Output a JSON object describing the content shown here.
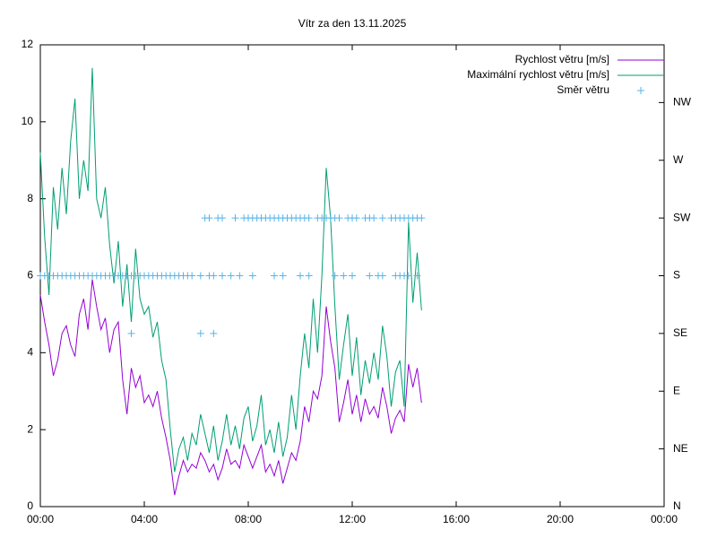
{
  "chart_data": {
    "type": "line",
    "title": "Vítr za den 13.11.2025",
    "x": [
      0,
      10,
      20,
      30,
      40,
      50,
      60,
      70,
      80,
      90,
      100,
      110,
      120,
      130,
      140,
      150,
      160,
      170,
      180,
      190,
      200,
      210,
      220,
      230,
      240,
      250,
      260,
      270,
      280,
      290,
      300,
      310,
      320,
      330,
      340,
      350,
      360,
      370,
      380,
      390,
      400,
      410,
      420,
      430,
      440,
      450,
      460,
      470,
      480,
      490,
      500,
      510,
      520,
      530,
      540,
      550,
      560,
      570,
      580,
      590,
      600,
      610,
      620,
      630,
      640,
      650,
      660,
      670,
      680,
      690,
      700,
      710,
      720,
      730,
      740,
      750,
      760,
      770,
      780,
      790,
      800,
      810,
      820,
      830,
      840,
      850,
      860,
      870,
      880
    ],
    "xlim": [
      0,
      1440
    ],
    "xticks": [
      {
        "value": 0,
        "label": "00:00"
      },
      {
        "value": 240,
        "label": "04:00"
      },
      {
        "value": 480,
        "label": "08:00"
      },
      {
        "value": 720,
        "label": "12:00"
      },
      {
        "value": 960,
        "label": "16:00"
      },
      {
        "value": 1200,
        "label": "20:00"
      },
      {
        "value": 1440,
        "label": "00:00"
      }
    ],
    "ylim": [
      0,
      12
    ],
    "yticks": [
      0,
      2,
      4,
      6,
      8,
      10,
      12
    ],
    "y2lim": [
      0,
      360
    ],
    "y2ticks": [
      {
        "value": 0,
        "label": "N"
      },
      {
        "value": 45,
        "label": "NE"
      },
      {
        "value": 90,
        "label": "E"
      },
      {
        "value": 135,
        "label": "SE"
      },
      {
        "value": 180,
        "label": "S"
      },
      {
        "value": 225,
        "label": "SW"
      },
      {
        "value": 270,
        "label": "W"
      },
      {
        "value": 315,
        "label": "NW"
      }
    ],
    "legend": "top right",
    "series": [
      {
        "name": "Rychlost větru [m/s]",
        "color": "#9400d3",
        "values": [
          5.5,
          4.8,
          4.2,
          3.4,
          3.8,
          4.5,
          4.7,
          4.2,
          3.9,
          5.0,
          5.4,
          4.6,
          5.9,
          5.2,
          4.6,
          4.9,
          4.0,
          4.6,
          4.8,
          3.3,
          2.4,
          3.6,
          3.1,
          3.4,
          2.7,
          2.9,
          2.6,
          3.0,
          2.3,
          1.8,
          1.2,
          0.3,
          0.8,
          1.2,
          0.9,
          1.1,
          1.0,
          1.4,
          1.2,
          0.9,
          1.1,
          0.7,
          1.0,
          1.5,
          1.1,
          1.2,
          1.0,
          1.6,
          1.3,
          1.0,
          1.3,
          1.6,
          0.9,
          1.1,
          0.8,
          1.2,
          0.6,
          1.0,
          1.4,
          1.2,
          1.7,
          2.6,
          2.2,
          3.0,
          2.8,
          3.4,
          5.2,
          4.3,
          3.6,
          2.2,
          2.7,
          3.3,
          2.4,
          2.9,
          2.2,
          2.8,
          2.4,
          2.6,
          2.3,
          3.1,
          2.6,
          1.9,
          2.3,
          2.5,
          2.2,
          3.7,
          3.1,
          3.6,
          2.7
        ]
      },
      {
        "name": "Maximální rychlost větru [m/s]",
        "color": "#009e73",
        "values": [
          9.2,
          7.0,
          5.5,
          8.3,
          7.2,
          8.8,
          7.6,
          9.5,
          10.6,
          8.0,
          9.0,
          8.2,
          11.4,
          8.0,
          7.5,
          8.3,
          6.8,
          5.8,
          6.9,
          5.2,
          6.3,
          4.8,
          6.7,
          5.4,
          5.0,
          5.2,
          4.4,
          4.8,
          3.8,
          3.3,
          2.0,
          0.9,
          1.5,
          1.8,
          1.2,
          1.9,
          1.6,
          2.4,
          1.9,
          1.4,
          2.1,
          1.2,
          1.7,
          2.4,
          1.6,
          2.1,
          1.5,
          2.3,
          2.6,
          1.7,
          2.1,
          2.9,
          1.6,
          2.0,
          1.4,
          2.2,
          1.3,
          1.8,
          2.9,
          2.0,
          3.4,
          4.5,
          3.6,
          5.4,
          4.0,
          6.0,
          8.8,
          7.5,
          5.2,
          3.3,
          4.2,
          5.0,
          3.4,
          4.4,
          2.9,
          3.8,
          3.2,
          4.0,
          3.3,
          4.7,
          3.9,
          2.6,
          3.5,
          3.8,
          2.6,
          7.4,
          5.3,
          6.6,
          5.1
        ]
      },
      {
        "name": "Směr větru",
        "color": "#56b4e9",
        "axis": "y2",
        "marker": "+",
        "x": [
          0,
          10,
          20,
          30,
          40,
          50,
          60,
          70,
          80,
          90,
          100,
          110,
          120,
          130,
          140,
          150,
          160,
          170,
          180,
          190,
          200,
          210,
          220,
          230,
          240,
          250,
          260,
          270,
          280,
          290,
          300,
          310,
          320,
          330,
          340,
          350,
          370,
          390,
          400,
          420,
          440,
          460,
          490,
          540,
          560,
          600,
          620,
          680,
          700,
          720,
          760,
          780,
          790,
          820,
          830,
          840,
          850,
          870,
          380,
          390,
          410,
          420,
          450,
          470,
          480,
          490,
          500,
          510,
          520,
          530,
          540,
          550,
          560,
          570,
          580,
          590,
          600,
          610,
          620,
          640,
          650,
          660,
          670,
          680,
          690,
          710,
          720,
          730,
          750,
          760,
          770,
          790,
          810,
          820,
          830,
          840,
          850,
          860,
          870,
          880,
          210,
          370,
          400
        ],
        "values": [
          180,
          180,
          180,
          180,
          180,
          180,
          180,
          180,
          180,
          180,
          180,
          180,
          180,
          180,
          180,
          180,
          180,
          180,
          180,
          180,
          180,
          180,
          180,
          180,
          180,
          180,
          180,
          180,
          180,
          180,
          180,
          180,
          180,
          180,
          180,
          180,
          180,
          180,
          180,
          180,
          180,
          180,
          180,
          180,
          180,
          180,
          180,
          180,
          180,
          180,
          180,
          180,
          180,
          180,
          180,
          180,
          180,
          180,
          225,
          225,
          225,
          225,
          225,
          225,
          225,
          225,
          225,
          225,
          225,
          225,
          225,
          225,
          225,
          225,
          225,
          225,
          225,
          225,
          225,
          225,
          225,
          225,
          225,
          225,
          225,
          225,
          225,
          225,
          225,
          225,
          225,
          225,
          225,
          225,
          225,
          225,
          225,
          225,
          225,
          225,
          135,
          135,
          135
        ]
      }
    ]
  }
}
